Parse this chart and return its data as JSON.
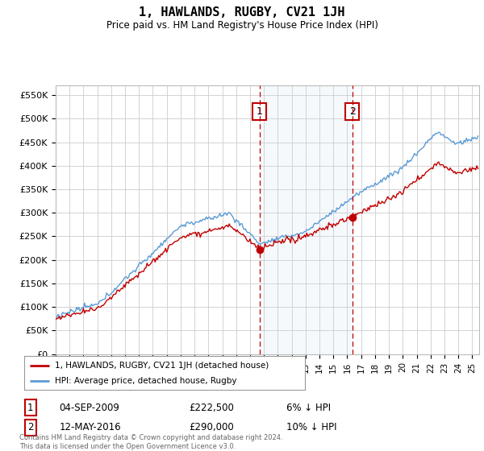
{
  "title": "1, HAWLANDS, RUGBY, CV21 1JH",
  "subtitle": "Price paid vs. HM Land Registry's House Price Index (HPI)",
  "ylim": [
    0,
    570000
  ],
  "xlim_start": 1995.0,
  "xlim_end": 2025.5,
  "hpi_color": "#5b9bd5",
  "price_color": "#c00000",
  "marker1_x": 2009.67,
  "marker1_y": 222500,
  "marker2_x": 2016.36,
  "marker2_y": 290000,
  "annotation1_date": "04-SEP-2009",
  "annotation1_price": "£222,500",
  "annotation1_hpi": "6% ↓ HPI",
  "annotation2_date": "12-MAY-2016",
  "annotation2_price": "£290,000",
  "annotation2_hpi": "10% ↓ HPI",
  "legend_label1": "1, HAWLANDS, RUGBY, CV21 1JH (detached house)",
  "legend_label2": "HPI: Average price, detached house, Rugby",
  "footnote": "Contains HM Land Registry data © Crown copyright and database right 2024.\nThis data is licensed under the Open Government Licence v3.0.",
  "background_color": "#ffffff",
  "grid_color": "#cccccc"
}
